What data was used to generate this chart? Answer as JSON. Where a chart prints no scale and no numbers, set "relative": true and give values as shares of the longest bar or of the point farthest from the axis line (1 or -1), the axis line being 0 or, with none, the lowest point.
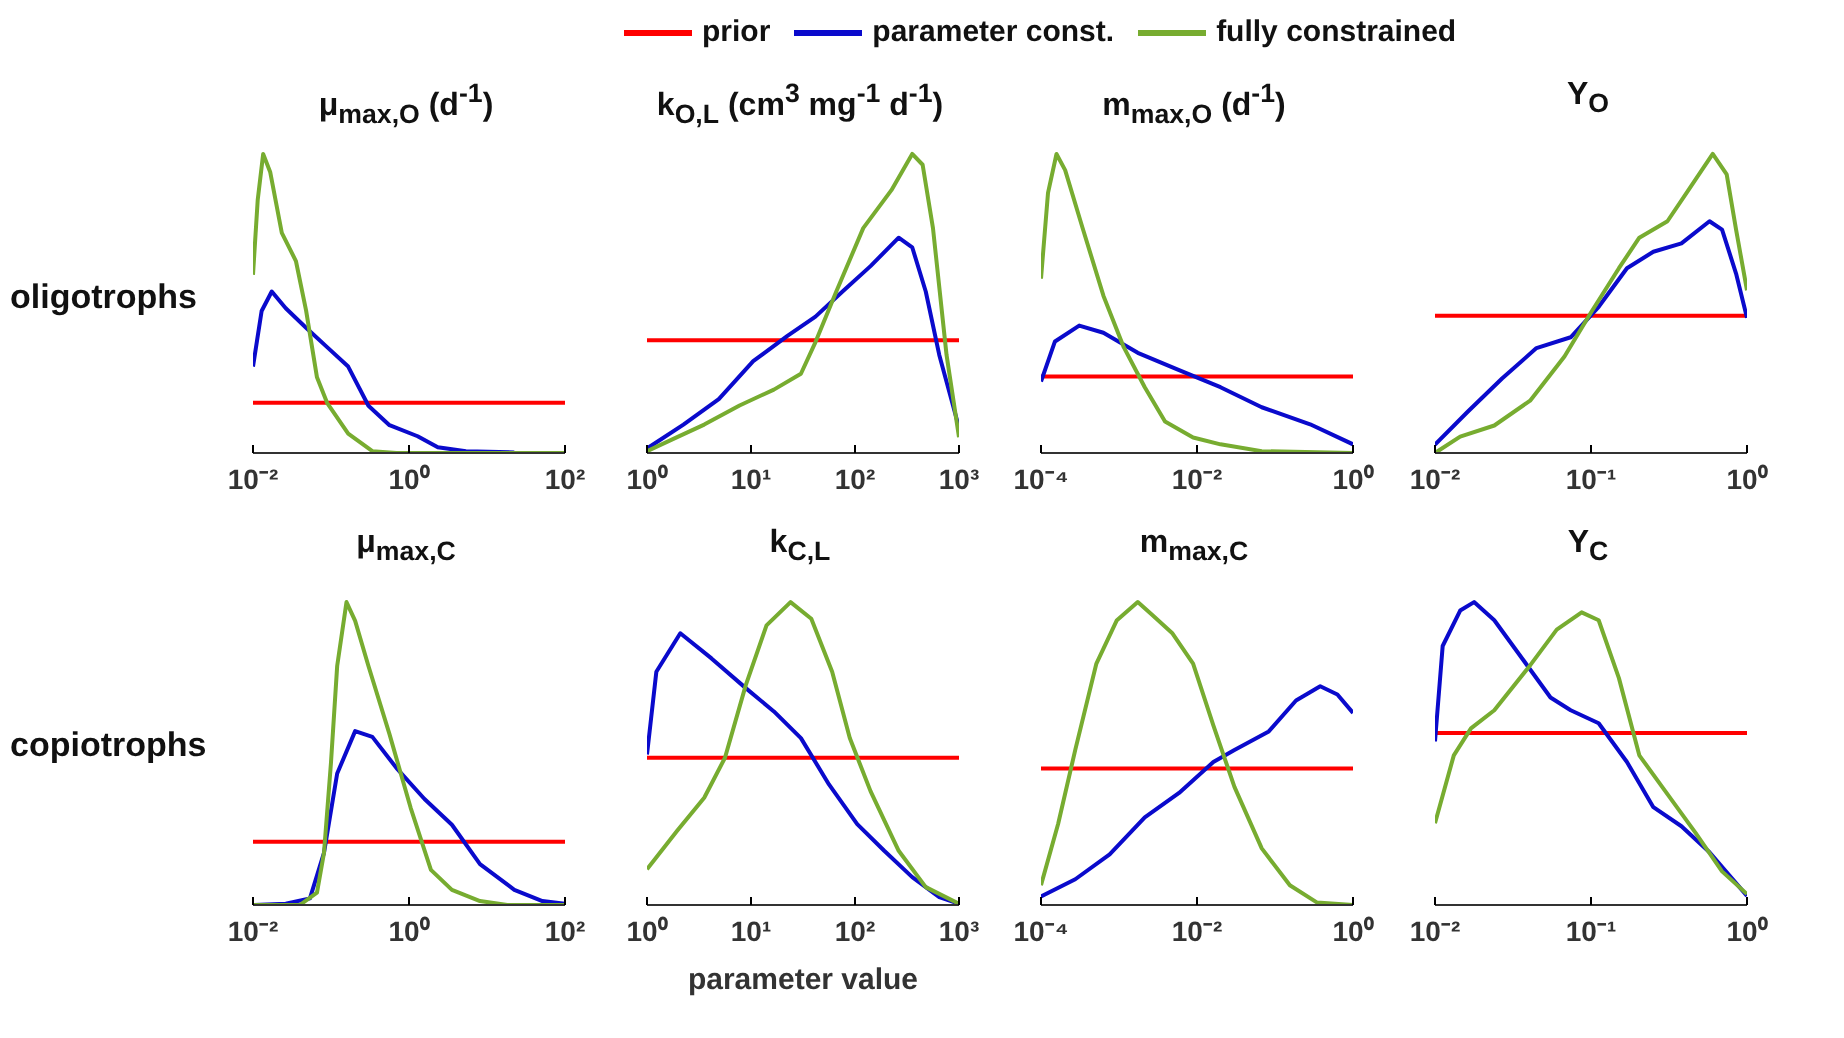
{
  "chart_data": [
    {
      "type": "line",
      "title": "μ$_{max,O}$ (d$^{-1}$)",
      "annotations": [
        "oligotrophs"
      ],
      "relative": true,
      "log": "x",
      "legend": "top",
      "xlim": [
        0.01,
        100
      ],
      "xticks": [
        {
          "value": 0.01,
          "label": "10⁻²"
        },
        {
          "value": 1,
          "label": "10⁰"
        },
        {
          "value": 100,
          "label": "10²"
        }
      ],
      "series": [
        {
          "name": "prior",
          "color": "#ff0000",
          "x": [
            0.01,
            100
          ],
          "values": [
            0.168,
            0.168
          ]
        },
        {
          "name": "parameter const.",
          "color": "#0a0acc",
          "x": [
            0.01,
            0.0129,
            0.0174,
            0.0263,
            0.0479,
            0.0891,
            0.166,
            0.302,
            0.562,
            1.29,
            2.34,
            5.37,
            22.4
          ],
          "values": [
            0.289,
            0.475,
            0.54,
            0.484,
            0.419,
            0.354,
            0.289,
            0.158,
            0.093,
            0.056,
            0.019,
            0.006,
            0.002
          ]
        },
        {
          "name": "fully constrained",
          "color": "#77ac30",
          "x": [
            0.01,
            0.0115,
            0.0135,
            0.0166,
            0.0234,
            0.0355,
            0.0479,
            0.0661,
            0.0891,
            0.166,
            0.339,
            0.692,
            100
          ],
          "values": [
            0.596,
            0.847,
            1.0,
            0.94,
            0.736,
            0.642,
            0.477,
            0.253,
            0.168,
            0.065,
            0.006,
            0,
            0
          ]
        }
      ]
    },
    {
      "type": "line",
      "title": "k$_{O,L}$ (cm$^{3}$ mg$^{-1}$ d$^{-1}$)",
      "relative": true,
      "log": "x",
      "xlim": [
        1,
        1000
      ],
      "xticks": [
        {
          "value": 1,
          "label": "10⁰"
        },
        {
          "value": 10,
          "label": "10¹"
        },
        {
          "value": 100,
          "label": "10²"
        },
        {
          "value": 1000,
          "label": "10³"
        }
      ],
      "series": [
        {
          "color": "#ff0000",
          "x": [
            1,
            1000
          ],
          "values": [
            0.377,
            0.377
          ]
        },
        {
          "color": "#0a0acc",
          "x": [
            1,
            2.24,
            4.9,
            10.5,
            22.4,
            41.7,
            75.9,
            141,
            263,
            355,
            479,
            646,
            1000
          ],
          "values": [
            0.015,
            0.095,
            0.18,
            0.307,
            0.392,
            0.456,
            0.54,
            0.625,
            0.72,
            0.688,
            0.54,
            0.328,
            0.085
          ]
        },
        {
          "color": "#77ac30",
          "x": [
            1,
            1.95,
            3.55,
            7.76,
            16.6,
            30.2,
            41.7,
            66.1,
            120,
            224,
            355,
            447,
            562,
            759,
            1000
          ],
          "values": [
            0.006,
            0.053,
            0.095,
            0.159,
            0.212,
            0.265,
            0.371,
            0.54,
            0.752,
            0.879,
            1.0,
            0.964,
            0.752,
            0.328,
            0.053
          ]
        }
      ]
    },
    {
      "type": "line",
      "title": "m$_{max,O}$ (d$^{-1}$)",
      "relative": true,
      "log": "x",
      "xlim": [
        0.0001,
        1
      ],
      "xticks": [
        {
          "value": 0.0001,
          "label": "10⁻⁴"
        },
        {
          "value": 0.01,
          "label": "10⁻²"
        },
        {
          "value": 1,
          "label": "10⁰"
        }
      ],
      "series": [
        {
          "color": "#ff0000",
          "x": [
            0.0001,
            1
          ],
          "values": [
            0.256,
            0.256
          ]
        },
        {
          "color": "#0a0acc",
          "x": [
            0.0001,
            0.000151,
            0.000309,
            0.000631,
            0.00174,
            0.00589,
            0.02,
            0.0676,
            0.282,
            1
          ],
          "values": [
            0.239,
            0.373,
            0.426,
            0.402,
            0.335,
            0.277,
            0.22,
            0.153,
            0.096,
            0.029
          ]
        },
        {
          "color": "#77ac30",
          "x": [
            0.0001,
            0.000123,
            0.000158,
            0.000204,
            0.000339,
            0.000631,
            0.00115,
            0.00214,
            0.00389,
            0.00891,
            0.02,
            0.0676,
            1
          ],
          "values": [
            0.583,
            0.87,
            1.0,
            0.946,
            0.755,
            0.526,
            0.354,
            0.22,
            0.105,
            0.052,
            0.029,
            0.006,
            0
          ]
        }
      ]
    },
    {
      "type": "line",
      "title": "Y$_{O}$",
      "relative": true,
      "log": "x",
      "xlim": [
        0.01,
        1
      ],
      "xticks": [
        {
          "value": 0.01,
          "label": "10⁻²"
        },
        {
          "value": 0.1,
          "label": "10⁻¹"
        },
        {
          "value": 1,
          "label": "10⁰"
        }
      ],
      "series": [
        {
          "color": "#ff0000",
          "x": [
            0.01,
            1
          ],
          "values": [
            0.459,
            0.459
          ]
        },
        {
          "color": "#0a0acc",
          "x": [
            0.01,
            0.0162,
            0.0269,
            0.0447,
            0.0741,
            0.112,
            0.17,
            0.251,
            0.38,
            0.575,
            0.692,
            0.851,
            1
          ],
          "values": [
            0.028,
            0.138,
            0.249,
            0.351,
            0.387,
            0.489,
            0.618,
            0.673,
            0.701,
            0.775,
            0.747,
            0.6,
            0.452
          ]
        },
        {
          "color": "#77ac30",
          "x": [
            0.01,
            0.0145,
            0.024,
            0.0407,
            0.0676,
            0.1,
            0.151,
            0.204,
            0.309,
            0.417,
            0.603,
            0.741,
            0.851,
            1
          ],
          "values": [
            0,
            0.055,
            0.092,
            0.175,
            0.323,
            0.47,
            0.618,
            0.72,
            0.775,
            0.876,
            1.0,
            0.932,
            0.747,
            0.544
          ]
        }
      ]
    },
    {
      "type": "line",
      "title": "μ$_{max,C}$",
      "annotations": [
        "copiotrophs"
      ],
      "relative": true,
      "log": "x",
      "xlim": [
        0.01,
        100
      ],
      "xticks": [
        {
          "value": 0.01,
          "label": "10⁻²"
        },
        {
          "value": 1,
          "label": "10⁰"
        },
        {
          "value": 100,
          "label": "10²"
        }
      ],
      "series": [
        {
          "color": "#ff0000",
          "x": [
            0.01,
            100
          ],
          "values": [
            0.209,
            0.209
          ]
        },
        {
          "color": "#0a0acc",
          "x": [
            0.01,
            0.0263,
            0.0537,
            0.0813,
            0.12,
            0.204,
            0.339,
            0.692,
            1.58,
            3.55,
            8.13,
            22.4,
            51.3,
            100
          ],
          "values": [
            0,
            0.004,
            0.022,
            0.172,
            0.434,
            0.574,
            0.555,
            0.452,
            0.35,
            0.265,
            0.135,
            0.05,
            0.013,
            0.004
          ]
        },
        {
          "color": "#77ac30",
          "x": [
            0.01,
            0.0398,
            0.0661,
            0.0813,
            0.1,
            0.12,
            0.158,
            0.204,
            0.302,
            0.562,
            1.05,
            1.91,
            3.55,
            8.13,
            18.2,
            100
          ],
          "values": [
            0,
            0,
            0.041,
            0.172,
            0.471,
            0.789,
            1.0,
            0.938,
            0.789,
            0.564,
            0.321,
            0.116,
            0.05,
            0.013,
            0,
            0
          ]
        }
      ]
    },
    {
      "type": "line",
      "title": "k$_{C,L}$",
      "xlabel": "parameter value",
      "relative": true,
      "log": "x",
      "xlim": [
        1,
        1000
      ],
      "xticks": [
        {
          "value": 1,
          "label": "10⁰"
        },
        {
          "value": 10,
          "label": "10¹"
        },
        {
          "value": 100,
          "label": "10²"
        },
        {
          "value": 1000,
          "label": "10³"
        }
      ],
      "series": [
        {
          "color": "#ff0000",
          "x": [
            1,
            1000
          ],
          "values": [
            0.486,
            0.486
          ]
        },
        {
          "color": "#0a0acc",
          "x": [
            1,
            1.23,
            2.09,
            4.17,
            8.91,
            16.6,
            30.2,
            56.2,
            105,
            191,
            355,
            646,
            1000
          ],
          "values": [
            0.497,
            0.77,
            0.897,
            0.814,
            0.716,
            0.639,
            0.551,
            0.398,
            0.267,
            0.179,
            0.092,
            0.026,
            0.004
          ]
        },
        {
          "color": "#77ac30",
          "x": [
            1,
            1.95,
            3.55,
            5.62,
            8.91,
            14.1,
            24,
            38,
            60.3,
            89.1,
            141,
            263,
            479,
            1000
          ],
          "values": [
            0.118,
            0.245,
            0.354,
            0.486,
            0.726,
            0.923,
            1.0,
            0.945,
            0.77,
            0.551,
            0.376,
            0.179,
            0.059,
            0.004
          ]
        }
      ]
    },
    {
      "type": "line",
      "title": "m$_{max,C}$",
      "relative": true,
      "log": "x",
      "xlim": [
        0.0001,
        1
      ],
      "xticks": [
        {
          "value": 0.0001,
          "label": "10⁻⁴"
        },
        {
          "value": 0.01,
          "label": "10⁻²"
        },
        {
          "value": 1,
          "label": "10⁰"
        }
      ],
      "series": [
        {
          "color": "#ff0000",
          "x": [
            0.0001,
            1
          ],
          "values": [
            0.451,
            0.451
          ]
        },
        {
          "color": "#0a0acc",
          "x": [
            0.0001,
            0.000275,
            0.000759,
            0.00214,
            0.00589,
            0.0162,
            0.0302,
            0.0832,
            0.186,
            0.38,
            0.631,
            1
          ],
          "values": [
            0.028,
            0.085,
            0.167,
            0.289,
            0.37,
            0.472,
            0.512,
            0.573,
            0.675,
            0.722,
            0.695,
            0.634
          ]
        },
        {
          "color": "#77ac30",
          "x": [
            0.0001,
            0.000166,
            0.000275,
            0.000513,
            0.000933,
            0.00174,
            0.00263,
            0.00479,
            0.00891,
            0.0162,
            0.0302,
            0.0676,
            0.155,
            0.347,
            1
          ],
          "values": [
            0.065,
            0.268,
            0.512,
            0.797,
            0.939,
            1.0,
            0.959,
            0.898,
            0.797,
            0.593,
            0.39,
            0.187,
            0.065,
            0.008,
            0
          ]
        }
      ]
    },
    {
      "type": "line",
      "title": "Y$_{C}$",
      "relative": true,
      "log": "x",
      "xlim": [
        0.01,
        1
      ],
      "xticks": [
        {
          "value": 0.01,
          "label": "10⁻²"
        },
        {
          "value": 0.1,
          "label": "10⁻¹"
        },
        {
          "value": 1,
          "label": "10⁰"
        }
      ],
      "series": [
        {
          "color": "#ff0000",
          "x": [
            0.01,
            1
          ],
          "values": [
            0.568,
            0.568
          ]
        },
        {
          "color": "#0a0acc",
          "x": [
            0.01,
            0.0112,
            0.0145,
            0.0178,
            0.024,
            0.0363,
            0.055,
            0.0741,
            0.112,
            0.17,
            0.251,
            0.38,
            0.575,
            1
          ],
          "values": [
            0.54,
            0.855,
            0.972,
            1.0,
            0.94,
            0.813,
            0.685,
            0.643,
            0.6,
            0.472,
            0.323,
            0.26,
            0.174,
            0.03
          ]
        },
        {
          "color": "#77ac30",
          "x": [
            0.01,
            0.0132,
            0.017,
            0.024,
            0.0407,
            0.0603,
            0.0871,
            0.112,
            0.151,
            0.204,
            0.309,
            0.468,
            0.692,
            1
          ],
          "values": [
            0.27,
            0.494,
            0.583,
            0.643,
            0.791,
            0.909,
            0.966,
            0.94,
            0.749,
            0.494,
            0.366,
            0.238,
            0.111,
            0.036
          ]
        }
      ]
    }
  ]
}
